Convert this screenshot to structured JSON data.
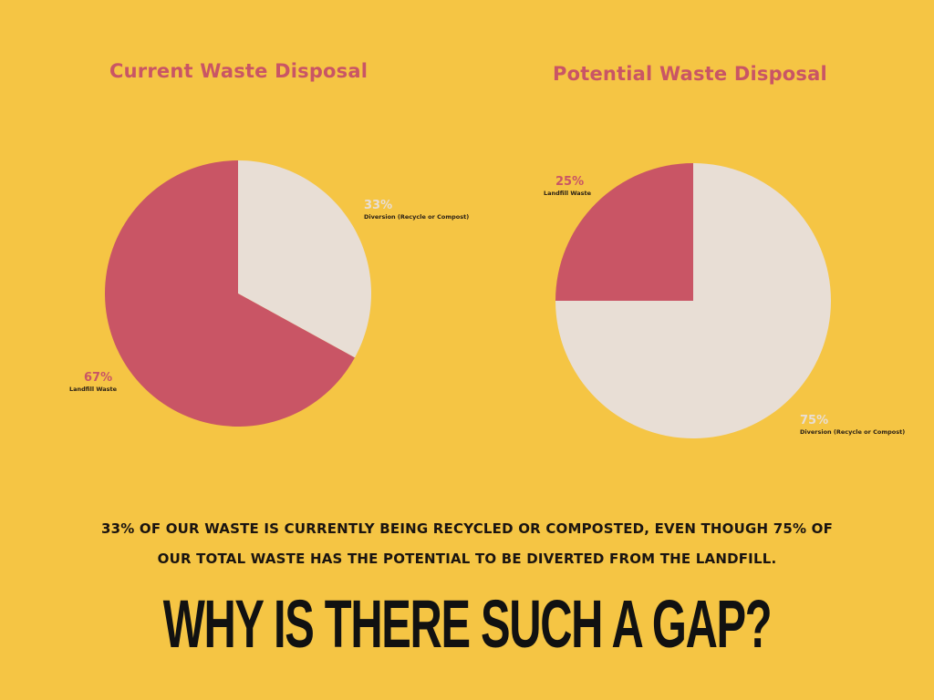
{
  "colors": {
    "background": "#F5C544",
    "landfill": "#C95565",
    "diversion": "#E8DED5",
    "text_dark": "#1a1410"
  },
  "chart_data": [
    {
      "type": "pie",
      "title": "Current Waste Disposal",
      "slices": [
        {
          "label": "Diversion (Recycle or Compost)",
          "percent_label": "33%",
          "value": 33,
          "color": "#E8DED5"
        },
        {
          "label": "Landfill Waste",
          "percent_label": "67%",
          "value": 67,
          "color": "#C95565"
        }
      ]
    },
    {
      "type": "pie",
      "title": "Potential Waste Disposal",
      "slices": [
        {
          "label": "Diversion (Recycle or Compost)",
          "percent_label": "75%",
          "value": 75,
          "color": "#E8DED5"
        },
        {
          "label": "Landfill Waste",
          "percent_label": "25%",
          "value": 25,
          "color": "#C95565"
        }
      ]
    }
  ],
  "caption": {
    "line1": "33% OF OUR WASTE IS CURRENTLY BEING RECYCLED OR COMPOSTED, EVEN THOUGH 75% OF",
    "line2": "OUR TOTAL WASTE HAS THE POTENTIAL TO BE DIVERTED FROM THE LANDFILL."
  },
  "headline": "WHY IS THERE SUCH A GAP?"
}
